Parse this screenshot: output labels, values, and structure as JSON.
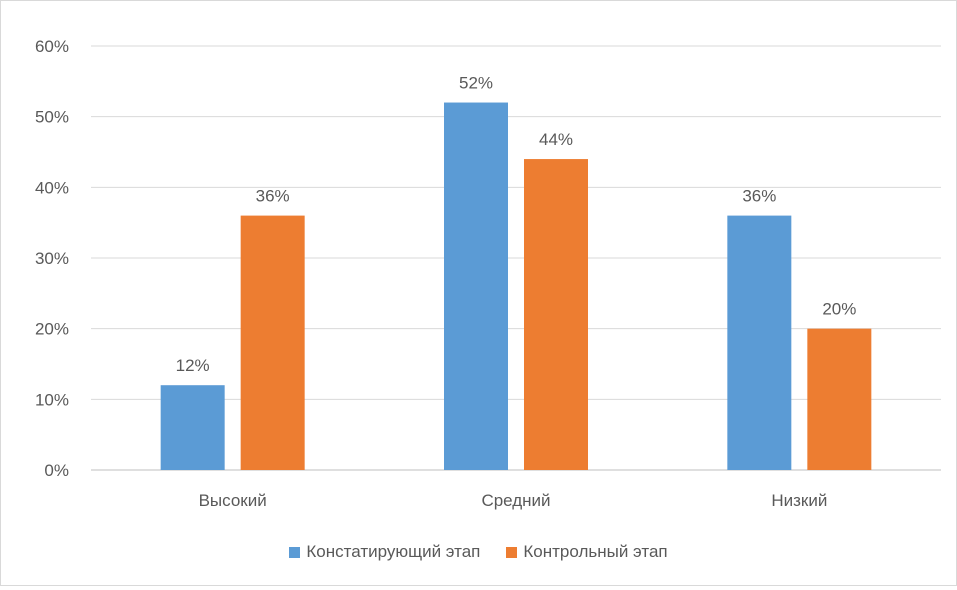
{
  "chart_data": {
    "type": "bar",
    "categories": [
      "Высокий",
      "Средний",
      "Низкий"
    ],
    "series": [
      {
        "name": "Констатирующий этап",
        "values": [
          12,
          52,
          36
        ],
        "color": "#5b9bd5"
      },
      {
        "name": "Контрольный этап",
        "values": [
          36,
          44,
          20
        ],
        "color": "#ed7d31"
      }
    ],
    "data_labels": [
      [
        "12%",
        "52%",
        "36%"
      ],
      [
        "36%",
        "44%",
        "20%"
      ]
    ],
    "yticks": [
      "0%",
      "10%",
      "20%",
      "30%",
      "40%",
      "50%",
      "60%"
    ],
    "ylim": [
      0,
      60
    ],
    "grid": true,
    "legend_position": "bottom",
    "title": "",
    "xlabel": "",
    "ylabel": ""
  }
}
